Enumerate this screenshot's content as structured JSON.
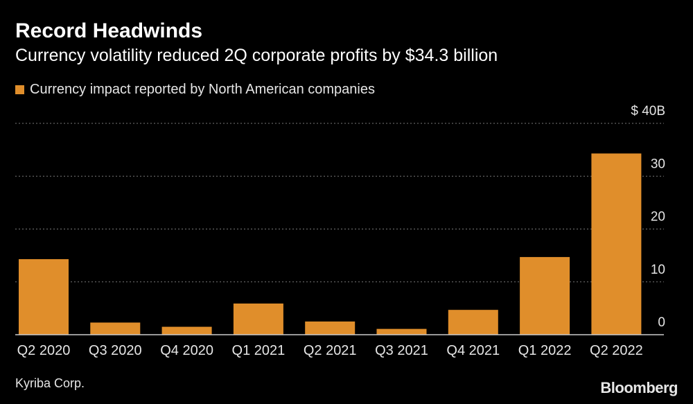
{
  "header": {
    "title": "Record Headwinds",
    "subtitle": "Currency volatility reduced 2Q corporate profits by $34.3 billion"
  },
  "legend": {
    "label": "Currency impact reported by North American companies",
    "color": "#e08e2b"
  },
  "footer": {
    "source": "Kyriba Corp.",
    "brand": "Bloomberg"
  },
  "chart_data": {
    "type": "bar",
    "title": "Record Headwinds",
    "subtitle": "Currency volatility reduced 2Q corporate profits by $34.3 billion",
    "categories": [
      "Q2 2020",
      "Q3 2020",
      "Q4 2020",
      "Q1 2021",
      "Q2 2021",
      "Q3 2021",
      "Q4 2021",
      "Q1 2022",
      "Q2 2022"
    ],
    "series": [
      {
        "name": "Currency impact reported by North American companies",
        "values": [
          14.3,
          2.3,
          1.5,
          5.9,
          2.5,
          1.1,
          4.7,
          14.7,
          34.3
        ],
        "color": "#e08e2b"
      }
    ],
    "xlabel": "",
    "ylabel": "",
    "ylim": [
      0,
      40
    ],
    "yticks": [
      0,
      10,
      20,
      30,
      40
    ],
    "ytick_labels": [
      "0",
      "10",
      "20",
      "30",
      "$ 40B"
    ],
    "y_axis_side": "right",
    "grid": true,
    "legend_position": "top-left"
  }
}
